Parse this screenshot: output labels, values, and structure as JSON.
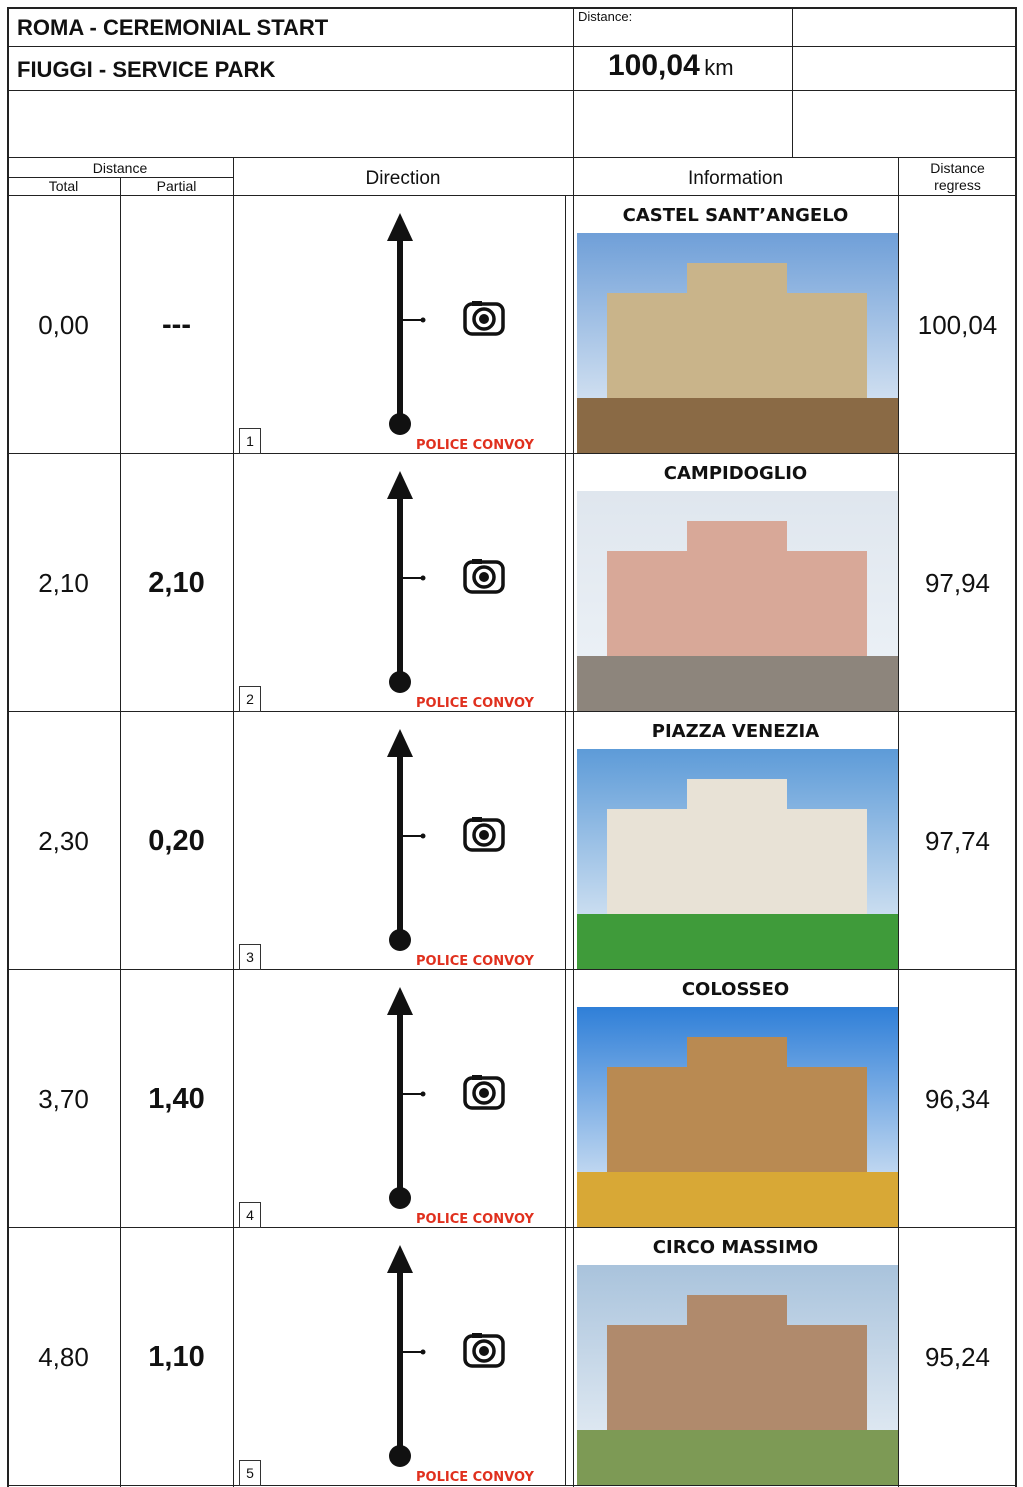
{
  "header": {
    "title": "ROMA - CEREMONIAL START",
    "subtitle": "FIUGGI - SERVICE PARK",
    "distance_label": "Distance:",
    "distance_value": "100,04",
    "distance_unit": "km"
  },
  "columns": {
    "distance": "Distance",
    "total": "Total",
    "partial": "Partial",
    "direction": "Direction",
    "information": "Information",
    "regress": [
      "Distance",
      "regress"
    ]
  },
  "rows": [
    {
      "total": "0,00",
      "partial": "---",
      "number": "1",
      "note": "POLICE CONVOY",
      "place": "CASTEL SANT’ANGELO",
      "regress": "100,04"
    },
    {
      "total": "2,10",
      "partial": "2,10",
      "number": "2",
      "note": "POLICE CONVOY",
      "place": "CAMPIDOGLIO",
      "regress": "97,94"
    },
    {
      "total": "2,30",
      "partial": "0,20",
      "number": "3",
      "note": "POLICE CONVOY",
      "place": "PIAZZA VENEZIA",
      "regress": "97,74"
    },
    {
      "total": "3,70",
      "partial": "1,40",
      "number": "4",
      "note": "POLICE CONVOY",
      "place": "COLOSSEO",
      "regress": "96,34"
    },
    {
      "total": "4,80",
      "partial": "1,10",
      "number": "5",
      "note": "POLICE CONVOY",
      "place": "CIRCO MASSIMO",
      "regress": "95,24"
    }
  ]
}
